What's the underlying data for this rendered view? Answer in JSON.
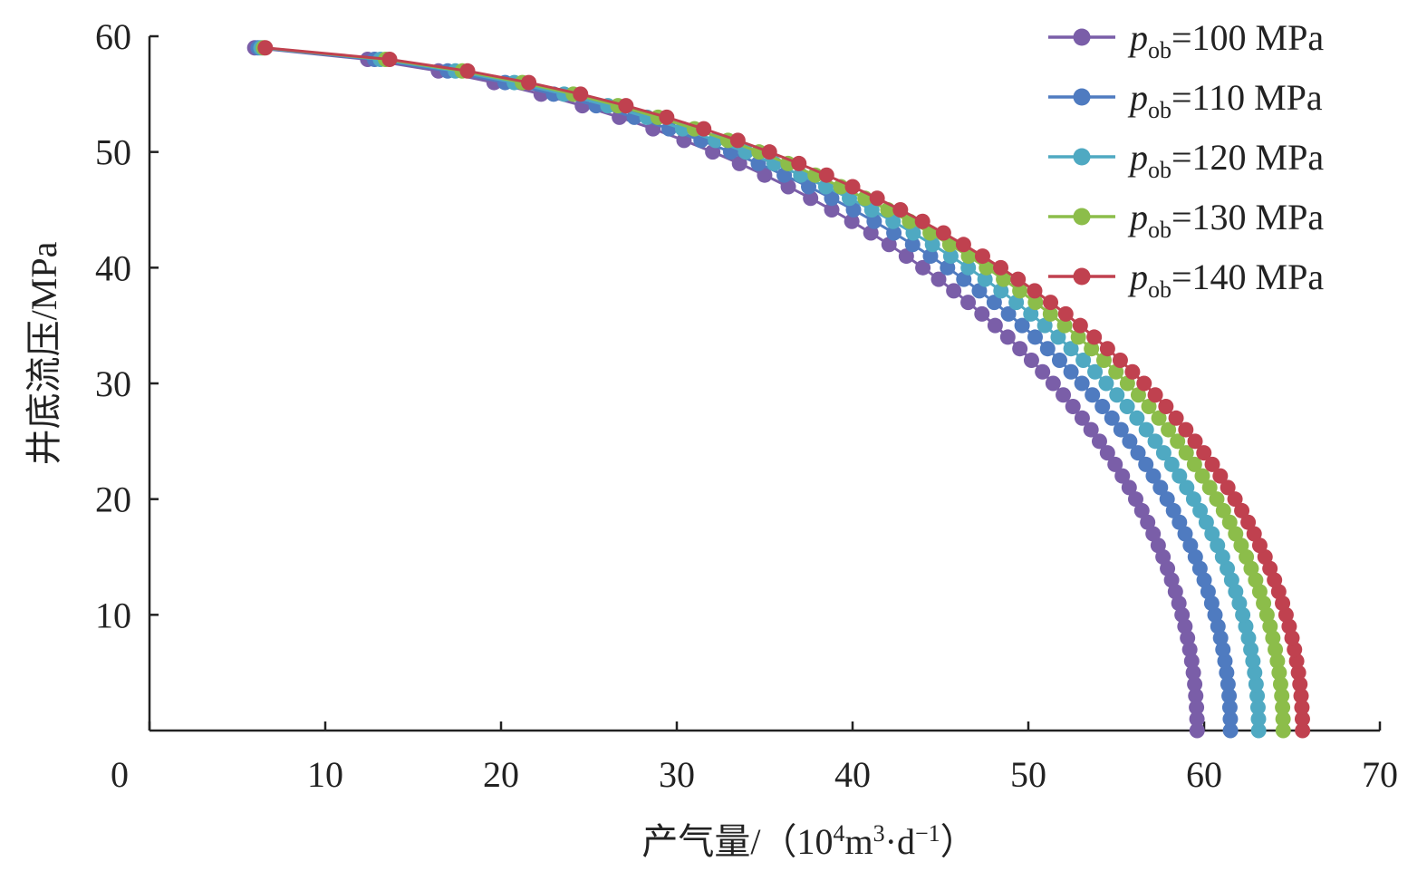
{
  "chart_data": {
    "type": "scatter",
    "title": "",
    "xlabel": {
      "main": "产气量/（10",
      "sup1": "4",
      "mid": "m",
      "sup2": "3",
      "tail": "·d",
      "sup3": "−1",
      "close": "）"
    },
    "ylabel": "井底流压/MPa",
    "xlim": [
      0,
      70
    ],
    "ylim": [
      0,
      60
    ],
    "x_ticks": [
      "0",
      "10",
      "20",
      "30",
      "40",
      "50",
      "60",
      "70"
    ],
    "y_ticks": [
      "10",
      "20",
      "30",
      "40",
      "50",
      "60"
    ],
    "grid": false,
    "legend_position": "top-right",
    "series": [
      {
        "name_base": "p",
        "name_sub": "ob",
        "name_rest": "=100 MPa",
        "color": "#7a5ea8",
        "q_max": 59.6
      },
      {
        "name_base": "p",
        "name_sub": "ob",
        "name_rest": "=110 MPa",
        "color": "#4f7bc0",
        "q_max": 61.5
      },
      {
        "name_base": "p",
        "name_sub": "ob",
        "name_rest": "=120 MPa",
        "color": "#4fa9c2",
        "q_max": 63.1
      },
      {
        "name_base": "p",
        "name_sub": "ob",
        "name_rest": "=130 MPa",
        "color": "#8cbd4a",
        "q_max": 64.5
      },
      {
        "name_base": "p",
        "name_sub": "ob",
        "name_rest": "=140 MPa",
        "color": "#c0414f",
        "q_max": 65.6
      }
    ],
    "pressure_max": 59.3,
    "pressure_step": 1
  }
}
